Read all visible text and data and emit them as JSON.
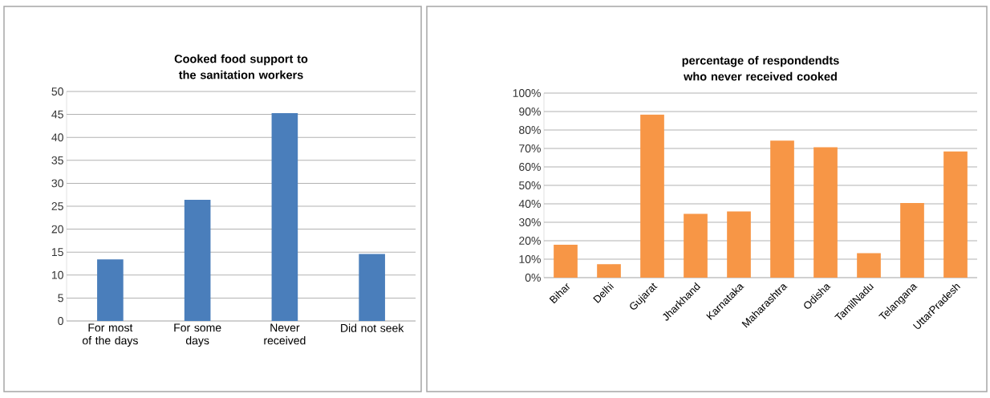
{
  "chart_data": [
    {
      "type": "bar",
      "title": "Cooked food support to the sanitation workers",
      "categories": [
        "For most of the days",
        "For some days",
        "Never received",
        "Did not seek"
      ],
      "values": [
        13.4,
        26.4,
        45.3,
        14.6
      ],
      "color": "#4a7ebb",
      "ylim": [
        0,
        50
      ],
      "yticks": [
        0,
        5,
        10,
        15,
        20,
        25,
        30,
        35,
        40,
        45,
        50
      ],
      "grid": "y"
    },
    {
      "type": "bar",
      "title": "percentage of respondendts who never received cooked",
      "categories": [
        "Bihar",
        "Delhi",
        "Gujarat",
        "Jharkhand",
        "Karnataka",
        "Maharashtra",
        "Odisha",
        "TamilNadu",
        "Telangana",
        "UttarPradesh"
      ],
      "values": [
        17.8,
        7.3,
        88.4,
        34.6,
        35.9,
        74.2,
        70.7,
        13.3,
        40.4,
        68.4
      ],
      "color": "#f79646",
      "ylim": [
        0,
        100
      ],
      "yticks": [
        {
          "value": 0,
          "label": "0%"
        },
        {
          "value": 10,
          "label": "10%"
        },
        {
          "value": 20,
          "label": "20%"
        },
        {
          "value": 30,
          "label": "30%"
        },
        {
          "value": 40,
          "label": "40%"
        },
        {
          "value": 50,
          "label": "50%"
        },
        {
          "value": 60,
          "label": "60%"
        },
        {
          "value": 70,
          "label": "70%"
        },
        {
          "value": 80,
          "label": "80%"
        },
        {
          "value": 90,
          "label": "90%"
        },
        {
          "value": 100,
          "label": "100%"
        }
      ],
      "grid": "y"
    }
  ]
}
